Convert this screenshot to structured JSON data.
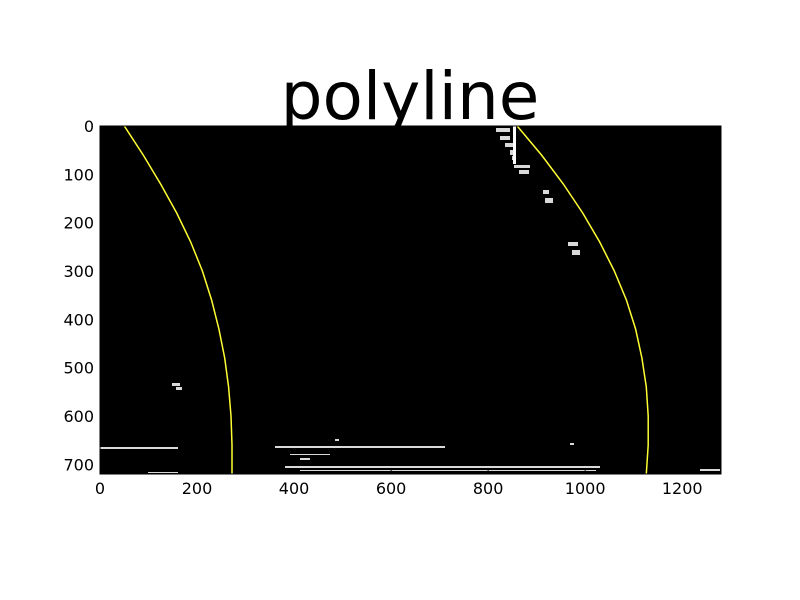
{
  "chart_data": {
    "type": "line",
    "title": "polyline",
    "xlabel": "",
    "ylabel": "",
    "xlim": [
      0,
      1280
    ],
    "ylim": [
      720,
      0
    ],
    "y_axis_inverted": true,
    "grid": false,
    "x_ticks": [
      0,
      200,
      400,
      600,
      800,
      1000,
      1200
    ],
    "y_ticks": [
      0,
      100,
      200,
      300,
      400,
      500,
      600,
      700
    ],
    "background": "binary lane-pixel image (black with white pixels)",
    "series": [
      {
        "color": "#ffff33",
        "y": [
          0,
          60,
          120,
          180,
          240,
          300,
          360,
          420,
          480,
          540,
          600,
          660,
          720
        ],
        "x": [
          50,
          89,
          125,
          158,
          187,
          211,
          230,
          245,
          257,
          265,
          270,
          272,
          272
        ]
      },
      {
        "color": "#ffff33",
        "y": [
          0,
          60,
          120,
          180,
          240,
          300,
          360,
          420,
          480,
          540,
          600,
          660,
          720
        ],
        "x": [
          860,
          910,
          955,
          995,
          1030,
          1060,
          1085,
          1104,
          1117,
          1126,
          1130,
          1130,
          1126
        ]
      }
    ]
  },
  "colors": {
    "plot_background": "#000000",
    "line": "#ffff33",
    "pixels": "#ffffff"
  }
}
